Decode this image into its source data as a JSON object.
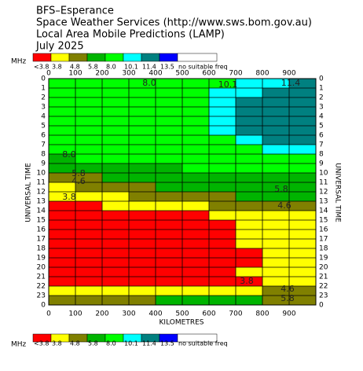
{
  "chart_data": {
    "type": "contour",
    "title_lines": [
      "BFS–Esperance",
      "Space Weather Services (http://www.sws.bom.gov.au)",
      "Local Area Mobile Predictions (LAMP)",
      "July 2025"
    ],
    "unit": "MHz",
    "x_label": "KILOMETRES",
    "y_label": "UNIVERSAL TIME",
    "xlim": [
      0,
      1000
    ],
    "xticks": [
      0,
      100,
      200,
      300,
      400,
      500,
      600,
      700,
      800,
      900
    ],
    "ylim": [
      0,
      24
    ],
    "yticks": [
      0,
      1,
      2,
      3,
      4,
      5,
      6,
      7,
      8,
      9,
      10,
      11,
      12,
      13,
      14,
      15,
      16,
      17,
      18,
      19,
      20,
      21,
      22,
      23,
      {
        "value": 24,
        "label": "0"
      }
    ],
    "thresholds": [
      3.8,
      4.8,
      5.8,
      8.0,
      10.1,
      11.4,
      13.5
    ],
    "legend_labels": [
      "<3.8",
      "3.8",
      "4.8",
      "5.8",
      "8.0",
      "10.1",
      "11.4",
      "13.5",
      "no suitable freq"
    ],
    "colors": [
      "#ff0000",
      "#ffff00",
      "#808000",
      "#00b400",
      "#00ff00",
      "#00ffff",
      "#008080",
      "#0000ff",
      "#ffffff"
    ],
    "z": [
      [
        9,
        9,
        9,
        9,
        9,
        9,
        9,
        10.5,
        10.5,
        12
      ],
      [
        9,
        9,
        9,
        9,
        9,
        9,
        10.5,
        10.5,
        12,
        12
      ],
      [
        9,
        9,
        9,
        9,
        9,
        9,
        10.5,
        12,
        12,
        12
      ],
      [
        9,
        9,
        9,
        9,
        9,
        9,
        10.5,
        12,
        12,
        12
      ],
      [
        9,
        9,
        9,
        9,
        9,
        9,
        10.5,
        12,
        12,
        12
      ],
      [
        9,
        9,
        9,
        9,
        9,
        9,
        10.5,
        12,
        12,
        12
      ],
      [
        9,
        9,
        9,
        9,
        9,
        9,
        9,
        10.5,
        12,
        12
      ],
      [
        9,
        9,
        9,
        9,
        9,
        9,
        9,
        9,
        10.5,
        10.5
      ],
      [
        7,
        9,
        9,
        9,
        9,
        9,
        9,
        9,
        9,
        9
      ],
      [
        7,
        7,
        7,
        7,
        7,
        9,
        9,
        9,
        9,
        9
      ],
      [
        5,
        5,
        7,
        7,
        7,
        7,
        7,
        7,
        7,
        7
      ],
      [
        4.2,
        5,
        5,
        5,
        7,
        7,
        7,
        7,
        7,
        7
      ],
      [
        4.2,
        4.2,
        4.2,
        5,
        5,
        5,
        5,
        7,
        7,
        7
      ],
      [
        3,
        3,
        4.2,
        4.2,
        4.2,
        4.2,
        5,
        5,
        5,
        5
      ],
      [
        3,
        3,
        3,
        3,
        3,
        3,
        4.2,
        4.2,
        4.2,
        4.2
      ],
      [
        3,
        3,
        3,
        3,
        3,
        3,
        3,
        4.2,
        4.2,
        4.2
      ],
      [
        3,
        3,
        3,
        3,
        3,
        3,
        3,
        4.2,
        4.2,
        4.2
      ],
      [
        3,
        3,
        3,
        3,
        3,
        3,
        3,
        4.2,
        4.2,
        4.2
      ],
      [
        3,
        3,
        3,
        3,
        3,
        3,
        3,
        3,
        4.2,
        4.2
      ],
      [
        3,
        3,
        3,
        3,
        3,
        3,
        3,
        3,
        4.2,
        4.2
      ],
      [
        3,
        3,
        3,
        3,
        3,
        3,
        3,
        4.2,
        4.2,
        4.2
      ],
      [
        3,
        3,
        3,
        3,
        3,
        3,
        3,
        3,
        4.2,
        4.2
      ],
      [
        4.2,
        4.2,
        4.2,
        4.2,
        4.2,
        4.2,
        4.2,
        4.2,
        5,
        5
      ],
      [
        5,
        5,
        5,
        5,
        7,
        7,
        7,
        7,
        5,
        5
      ]
    ],
    "annotations": [
      "8.0",
      "10.1",
      "11.4",
      "8.0",
      "5.8",
      "4.6",
      "3.8",
      "5.8",
      "4.6",
      "3.8",
      "4.6",
      "5.8"
    ]
  }
}
